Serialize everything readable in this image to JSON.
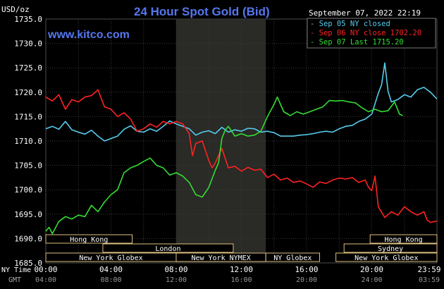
{
  "chart_data": {
    "type": "line",
    "title": "24 Hour Spot Gold (Bid)",
    "website": "www.kitco.com",
    "unit_label": "USD/oz",
    "timestamp": "September 07, 2022 22:19",
    "ylim": [
      1685,
      1735
    ],
    "y_ticks": [
      "1735.0",
      "1730.0",
      "1725.0",
      "1720.0",
      "1715.0",
      "1710.0",
      "1705.0",
      "1700.0",
      "1695.0",
      "1690.0",
      "1685.0"
    ],
    "xlim": [
      0,
      24
    ],
    "x_ticks_ny": [
      "00:00",
      "04:00",
      "08:00",
      "12:00",
      "16:00",
      "20:00",
      "23:59"
    ],
    "x_ticks_gmt": [
      "04:00",
      "08:00",
      "12:00",
      "16:00",
      "20:00",
      "24:00",
      "03:59"
    ],
    "x_axis_labels": {
      "ny": "NY Time",
      "gmt": "GMT"
    },
    "grid": true,
    "legend_position": "top-right",
    "highlight_band": [
      8.0,
      13.5
    ],
    "market_sessions": [
      {
        "label": "Hong Kong",
        "start": 0.0,
        "end": 5.3,
        "row": 1
      },
      {
        "label": "London",
        "start": 3.5,
        "end": 11.5,
        "row": 2
      },
      {
        "label": "New York Globex",
        "start": 0.0,
        "end": 8.0,
        "row": 3
      },
      {
        "label": "New York NYMEX",
        "start": 8.0,
        "end": 13.5,
        "row": 3
      },
      {
        "label": "NY Globex",
        "start": 13.5,
        "end": 16.8,
        "row": 3
      },
      {
        "label": "Hong Kong",
        "start": 19.9,
        "end": 24.0,
        "row": 1
      },
      {
        "label": "Sydney",
        "start": 18.3,
        "end": 24.0,
        "row": 2
      },
      {
        "label": "New York Globex",
        "start": 17.8,
        "end": 24.0,
        "row": 3
      }
    ],
    "series": [
      {
        "name": "Sep 05 NY closed",
        "color": "#55ccee",
        "points": [
          [
            0.0,
            1712.5
          ],
          [
            0.4,
            1713.0
          ],
          [
            0.8,
            1712.4
          ],
          [
            1.2,
            1714.0
          ],
          [
            1.6,
            1712.3
          ],
          [
            2.0,
            1711.8
          ],
          [
            2.4,
            1711.4
          ],
          [
            2.8,
            1712.2
          ],
          [
            3.2,
            1711.0
          ],
          [
            3.6,
            1710.0
          ],
          [
            4.0,
            1710.5
          ],
          [
            4.4,
            1711.0
          ],
          [
            4.8,
            1712.4
          ],
          [
            5.2,
            1713.1
          ],
          [
            5.6,
            1712.0
          ],
          [
            6.0,
            1711.8
          ],
          [
            6.4,
            1712.5
          ],
          [
            6.8,
            1712.0
          ],
          [
            7.2,
            1713.0
          ],
          [
            7.6,
            1714.1
          ],
          [
            8.0,
            1713.5
          ],
          [
            8.4,
            1713.0
          ],
          [
            8.8,
            1712.5
          ],
          [
            9.2,
            1711.2
          ],
          [
            9.6,
            1711.8
          ],
          [
            10.0,
            1712.1
          ],
          [
            10.4,
            1711.5
          ],
          [
            10.8,
            1712.8
          ],
          [
            11.2,
            1711.8
          ],
          [
            11.6,
            1712.3
          ],
          [
            12.0,
            1712.0
          ],
          [
            12.4,
            1712.6
          ],
          [
            12.8,
            1712.5
          ],
          [
            13.2,
            1711.8
          ],
          [
            13.6,
            1712.0
          ],
          [
            14.0,
            1711.7
          ],
          [
            14.4,
            1711.0
          ],
          [
            14.8,
            1711.0
          ],
          [
            15.2,
            1711.0
          ],
          [
            15.6,
            1711.2
          ],
          [
            16.0,
            1711.3
          ],
          [
            16.4,
            1711.5
          ],
          [
            16.8,
            1711.8
          ],
          [
            17.2,
            1712.0
          ],
          [
            17.6,
            1711.8
          ],
          [
            18.0,
            1712.5
          ],
          [
            18.4,
            1713.0
          ],
          [
            18.8,
            1713.2
          ],
          [
            19.2,
            1714.0
          ],
          [
            19.6,
            1714.5
          ],
          [
            20.0,
            1715.5
          ],
          [
            20.4,
            1719.8
          ],
          [
            20.6,
            1721.5
          ],
          [
            20.8,
            1726.0
          ],
          [
            21.0,
            1720.2
          ],
          [
            21.2,
            1718.0
          ],
          [
            21.6,
            1718.5
          ],
          [
            22.0,
            1719.5
          ],
          [
            22.4,
            1719.0
          ],
          [
            22.8,
            1720.5
          ],
          [
            23.2,
            1721.0
          ],
          [
            23.6,
            1720.0
          ],
          [
            24.0,
            1718.6
          ]
        ]
      },
      {
        "name": "Sep 06 NY close 1702.20",
        "color": "#ff2222",
        "points": [
          [
            0.0,
            1719.0
          ],
          [
            0.4,
            1718.2
          ],
          [
            0.8,
            1719.5
          ],
          [
            1.2,
            1716.5
          ],
          [
            1.6,
            1718.5
          ],
          [
            2.0,
            1718.0
          ],
          [
            2.4,
            1719.0
          ],
          [
            2.8,
            1719.3
          ],
          [
            3.2,
            1720.5
          ],
          [
            3.6,
            1717.0
          ],
          [
            4.0,
            1716.5
          ],
          [
            4.4,
            1715.0
          ],
          [
            4.8,
            1715.8
          ],
          [
            5.2,
            1714.5
          ],
          [
            5.6,
            1712.0
          ],
          [
            6.0,
            1712.5
          ],
          [
            6.4,
            1713.5
          ],
          [
            6.8,
            1712.8
          ],
          [
            7.2,
            1714.0
          ],
          [
            7.6,
            1713.5
          ],
          [
            8.0,
            1714.0
          ],
          [
            8.4,
            1713.5
          ],
          [
            8.8,
            1711.5
          ],
          [
            9.0,
            1707.0
          ],
          [
            9.2,
            1709.5
          ],
          [
            9.6,
            1710.0
          ],
          [
            10.0,
            1706.0
          ],
          [
            10.2,
            1704.5
          ],
          [
            10.4,
            1705.5
          ],
          [
            10.8,
            1708.5
          ],
          [
            11.2,
            1704.5
          ],
          [
            11.6,
            1704.8
          ],
          [
            12.0,
            1703.8
          ],
          [
            12.4,
            1704.6
          ],
          [
            12.8,
            1704.0
          ],
          [
            13.2,
            1704.2
          ],
          [
            13.6,
            1702.5
          ],
          [
            14.0,
            1703.2
          ],
          [
            14.4,
            1702.0
          ],
          [
            14.8,
            1702.4
          ],
          [
            15.2,
            1701.5
          ],
          [
            15.6,
            1701.8
          ],
          [
            16.0,
            1701.2
          ],
          [
            16.4,
            1700.5
          ],
          [
            16.8,
            1701.6
          ],
          [
            17.2,
            1701.3
          ],
          [
            17.6,
            1702.0
          ],
          [
            18.0,
            1702.4
          ],
          [
            18.4,
            1702.2
          ],
          [
            18.8,
            1702.5
          ],
          [
            19.2,
            1701.5
          ],
          [
            19.6,
            1702.0
          ],
          [
            19.8,
            1700.5
          ],
          [
            20.0,
            1699.8
          ],
          [
            20.2,
            1702.8
          ],
          [
            20.4,
            1696.5
          ],
          [
            20.8,
            1694.3
          ],
          [
            21.2,
            1695.5
          ],
          [
            21.6,
            1694.8
          ],
          [
            22.0,
            1696.5
          ],
          [
            22.4,
            1695.5
          ],
          [
            22.8,
            1694.8
          ],
          [
            23.2,
            1695.5
          ],
          [
            23.4,
            1693.8
          ],
          [
            23.6,
            1693.3
          ],
          [
            24.0,
            1693.6
          ]
        ]
      },
      {
        "name": "Sep 07 Last 1715.20",
        "color": "#33dd33",
        "points": [
          [
            0.0,
            1691.5
          ],
          [
            0.2,
            1692.3
          ],
          [
            0.4,
            1691.0
          ],
          [
            0.8,
            1693.5
          ],
          [
            1.2,
            1694.5
          ],
          [
            1.6,
            1694.0
          ],
          [
            2.0,
            1694.8
          ],
          [
            2.4,
            1694.5
          ],
          [
            2.8,
            1696.8
          ],
          [
            3.2,
            1695.5
          ],
          [
            3.6,
            1697.5
          ],
          [
            4.0,
            1699.0
          ],
          [
            4.4,
            1700.0
          ],
          [
            4.8,
            1703.5
          ],
          [
            5.2,
            1704.5
          ],
          [
            5.6,
            1705.0
          ],
          [
            6.0,
            1705.8
          ],
          [
            6.4,
            1706.5
          ],
          [
            6.8,
            1705.0
          ],
          [
            7.2,
            1704.5
          ],
          [
            7.6,
            1703.0
          ],
          [
            8.0,
            1703.5
          ],
          [
            8.4,
            1702.8
          ],
          [
            8.8,
            1701.5
          ],
          [
            9.2,
            1699.0
          ],
          [
            9.6,
            1698.5
          ],
          [
            10.0,
            1700.5
          ],
          [
            10.4,
            1704.0
          ],
          [
            10.6,
            1705.5
          ],
          [
            10.8,
            1710.5
          ],
          [
            11.0,
            1712.2
          ],
          [
            11.2,
            1713.0
          ],
          [
            11.6,
            1711.0
          ],
          [
            12.0,
            1711.5
          ],
          [
            12.4,
            1711.0
          ],
          [
            12.8,
            1711.2
          ],
          [
            13.2,
            1712.0
          ],
          [
            13.6,
            1715.0
          ],
          [
            14.0,
            1717.5
          ],
          [
            14.2,
            1719.0
          ],
          [
            14.6,
            1716.0
          ],
          [
            15.0,
            1715.2
          ],
          [
            15.4,
            1716.0
          ],
          [
            15.8,
            1715.5
          ],
          [
            16.2,
            1716.0
          ],
          [
            16.6,
            1716.5
          ],
          [
            17.0,
            1717.0
          ],
          [
            17.4,
            1718.3
          ],
          [
            17.8,
            1718.2
          ],
          [
            18.2,
            1718.3
          ],
          [
            18.6,
            1718.0
          ],
          [
            19.0,
            1717.8
          ],
          [
            19.4,
            1716.8
          ],
          [
            19.8,
            1716.0
          ],
          [
            20.2,
            1716.5
          ],
          [
            20.6,
            1716.0
          ],
          [
            21.0,
            1716.2
          ],
          [
            21.4,
            1718.0
          ],
          [
            21.7,
            1715.5
          ],
          [
            21.9,
            1715.2
          ]
        ]
      }
    ]
  }
}
